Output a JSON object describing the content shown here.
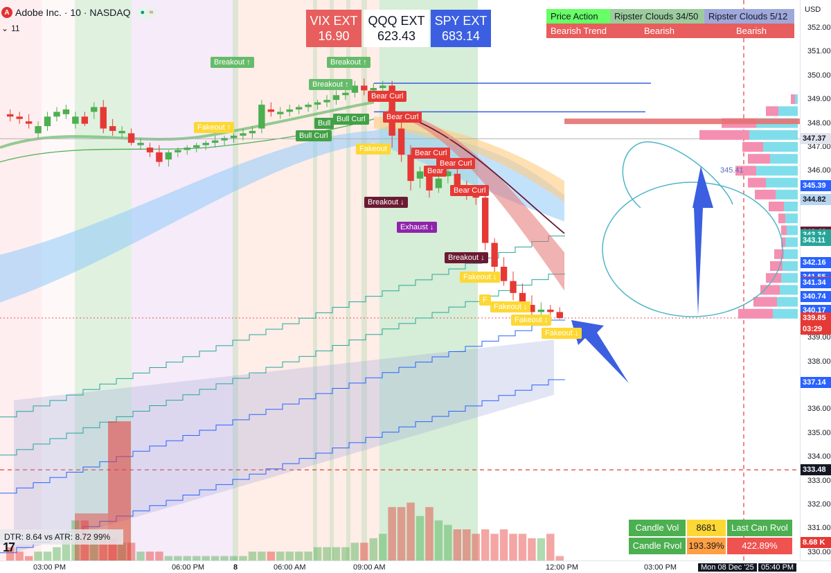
{
  "header": {
    "logo": "A",
    "title": "Adobe Inc. · 10 · NASDAQ",
    "interval_tag": "11",
    "pill_dot": "●",
    "pill_wave": "≈"
  },
  "ext_boxes": [
    {
      "name": "VIX EXT",
      "value": "16.90",
      "bg": "#e85d5d",
      "fg": "#ffffff"
    },
    {
      "name": "QQQ EXT",
      "value": "623.43",
      "bg": "#ffffff",
      "fg": "#131722"
    },
    {
      "name": "SPY EXT",
      "value": "683.14",
      "bg": "#3b5fe0",
      "fg": "#ffffff"
    }
  ],
  "status_table": {
    "headers": [
      "Price Action",
      "Ripster Clouds 34/50",
      "Ripster Clouds 5/12"
    ],
    "values": [
      "Bearish Trend",
      "Bearish",
      "Bearish"
    ]
  },
  "candle_table": {
    "rows": [
      {
        "label": "Candle Vol",
        "value": "8681",
        "extra": "Last Can Rvol"
      },
      {
        "label": "Candle Rvol",
        "value": "193.39%",
        "extra": "422.89%"
      }
    ]
  },
  "dtr_text": "DTR: 8.64 vs ATR: 8.72 99%",
  "tv_logo": "17",
  "axis": {
    "currency": "USD",
    "y_ticks": [
      "352.00",
      "351.00",
      "350.00",
      "349.00",
      "348.00",
      "347.00",
      "346.00",
      "343.00",
      "339.00",
      "338.00",
      "336.00",
      "335.00",
      "334.00",
      "333.00",
      "332.00",
      "331.00",
      "330.00"
    ],
    "x_ticks": [
      "03:00 PM",
      "06:00 PM",
      "8",
      "06:00 AM",
      "09:00 AM",
      "12:00 PM",
      "03:00 PM",
      "Mon 08 Dec '25",
      "05:40 PM"
    ]
  },
  "price_labels": [
    {
      "text": "347.37",
      "bg": "#e0e3eb",
      "fg": "#131722"
    },
    {
      "text": "345.39",
      "bg": "#2962ff",
      "fg": "#ffffff"
    },
    {
      "text": "344.82",
      "bg": "#b8d4f0",
      "fg": "#131722"
    },
    {
      "text": "343.46",
      "bg": "#6a1b33",
      "fg": "#ffffff"
    },
    {
      "text": "343.34",
      "bg": "#26a69a",
      "fg": "#ffffff"
    },
    {
      "text": "343.11",
      "bg": "#26a69a",
      "fg": "#ffffff"
    },
    {
      "text": "342.16",
      "bg": "#2962ff",
      "fg": "#ffffff"
    },
    {
      "text": "341.55",
      "bg": "#2962ff",
      "fg": "#ffffff"
    },
    {
      "text": "341.37",
      "bg": "#e53935",
      "fg": "#ffffff"
    },
    {
      "text": "341.34",
      "bg": "#2962ff",
      "fg": "#ffffff"
    },
    {
      "text": "340.74",
      "bg": "#2962ff",
      "fg": "#ffffff"
    },
    {
      "text": "340.17",
      "bg": "#2962ff",
      "fg": "#ffffff"
    },
    {
      "text": "339.85",
      "bg": "#e53935",
      "fg": "#ffffff"
    },
    {
      "text": "03:29",
      "bg": "#e53935",
      "fg": "#ffffff"
    },
    {
      "text": "337.14",
      "bg": "#2962ff",
      "fg": "#ffffff"
    },
    {
      "text": "333.48",
      "bg": "#131722",
      "fg": "#ffffff"
    },
    {
      "text": "8.68 K",
      "bg": "#e53935",
      "fg": "#ffffff"
    }
  ],
  "poc_label": "345.41",
  "signals": {
    "breakout_up": "Breakout ↑",
    "fakeout_up": "Fakeout ↑",
    "bull_curl": "Bull Curl",
    "bull_short": "Bull",
    "bear_curl": "Bear Curl",
    "bear_short": "Bear",
    "breakout_down": "Breakout ↓",
    "exhaust_down": "Exhaust ↓",
    "fakeout_down": "Fakeout ↓",
    "fakeout_short": "F"
  },
  "colors": {
    "bull": "#4caf50",
    "bear": "#e53935",
    "cloud_blue": "#90caf9",
    "cloud_orange": "#ffcc80",
    "vol_profile_up": "#80deea",
    "vol_profile_down": "#f48fb1",
    "signal_green": "#66bb6a",
    "signal_yellow": "#fdd835",
    "signal_maroon": "#6a1b33",
    "signal_purple": "#8e24aa"
  },
  "chart_data": {
    "type": "candlestick",
    "symbol": "Adobe Inc.",
    "interval": "10",
    "exchange": "NASDAQ",
    "ylim": [
      329.8,
      352.3
    ],
    "last_price": 339.85,
    "dashed_level": 333.48,
    "candles": [
      [
        348.4,
        348.6,
        348.1,
        348.3
      ],
      [
        348.3,
        348.5,
        348.0,
        348.2
      ],
      [
        348.1,
        348.4,
        347.8,
        348.0
      ],
      [
        347.6,
        348.1,
        347.4,
        347.9
      ],
      [
        347.9,
        348.5,
        347.7,
        348.3
      ],
      [
        348.3,
        348.7,
        348.1,
        348.5
      ],
      [
        348.4,
        348.8,
        348.2,
        348.6
      ],
      [
        348.0,
        348.5,
        347.8,
        348.3
      ],
      [
        348.3,
        348.5,
        347.9,
        348.0
      ],
      [
        348.5,
        348.9,
        348.2,
        348.7
      ],
      [
        348.7,
        349.0,
        347.6,
        347.8
      ],
      [
        347.9,
        348.2,
        347.5,
        347.7
      ],
      [
        347.6,
        347.9,
        347.4,
        347.7
      ],
      [
        347.6,
        347.8,
        347.1,
        347.2
      ],
      [
        347.1,
        347.4,
        346.9,
        347.2
      ],
      [
        347.0,
        347.2,
        346.6,
        346.8
      ],
      [
        346.8,
        347.1,
        346.2,
        346.4
      ],
      [
        346.5,
        346.9,
        346.2,
        346.8
      ],
      [
        346.8,
        347.0,
        346.6,
        346.9
      ],
      [
        346.9,
        347.1,
        346.7,
        347.0
      ],
      [
        347.0,
        347.2,
        346.8,
        347.1
      ],
      [
        347.1,
        347.3,
        346.9,
        347.2
      ],
      [
        347.2,
        347.5,
        347.0,
        347.3
      ],
      [
        347.3,
        347.5,
        347.1,
        347.4
      ],
      [
        347.4,
        347.6,
        347.2,
        347.5
      ],
      [
        347.5,
        347.8,
        347.3,
        347.6
      ],
      [
        347.6,
        347.9,
        347.4,
        347.7
      ],
      [
        347.8,
        349.0,
        347.6,
        348.8
      ],
      [
        348.6,
        348.9,
        348.3,
        348.5
      ],
      [
        348.4,
        348.7,
        348.2,
        348.5
      ],
      [
        348.5,
        348.8,
        348.3,
        348.6
      ],
      [
        348.6,
        348.8,
        348.4,
        348.7
      ],
      [
        348.7,
        348.9,
        348.5,
        348.8
      ],
      [
        348.8,
        349.0,
        348.6,
        348.9
      ],
      [
        348.9,
        349.2,
        348.7,
        349.0
      ],
      [
        349.0,
        349.4,
        348.8,
        349.2
      ],
      [
        349.2,
        349.6,
        349.0,
        349.3
      ],
      [
        349.3,
        349.8,
        349.1,
        349.6
      ],
      [
        349.6,
        349.9,
        349.2,
        349.4
      ],
      [
        349.4,
        349.7,
        349.1,
        349.5
      ],
      [
        349.5,
        349.8,
        349.2,
        349.6
      ],
      [
        349.6,
        349.8,
        347.0,
        347.5
      ],
      [
        347.8,
        348.2,
        346.4,
        346.7
      ],
      [
        346.7,
        347.1,
        345.2,
        345.6
      ],
      [
        345.7,
        346.2,
        345.3,
        346.0
      ],
      [
        345.9,
        346.1,
        344.9,
        345.2
      ],
      [
        345.3,
        345.9,
        345.1,
        345.7
      ],
      [
        345.8,
        346.4,
        345.5,
        346.0
      ],
      [
        345.9,
        346.1,
        345.0,
        345.3
      ],
      [
        345.3,
        345.6,
        344.8,
        345.0
      ],
      [
        345.0,
        345.4,
        344.6,
        344.9
      ],
      [
        344.9,
        345.1,
        342.7,
        343.0
      ],
      [
        343.0,
        343.2,
        341.7,
        342.0
      ],
      [
        342.0,
        342.4,
        341.2,
        341.4
      ],
      [
        341.4,
        341.8,
        340.6,
        340.9
      ],
      [
        340.9,
        341.3,
        340.1,
        340.4
      ],
      [
        340.4,
        340.8,
        339.9,
        340.1
      ],
      [
        340.1,
        340.5,
        339.7,
        340.2
      ],
      [
        340.2,
        340.4,
        339.9,
        340.1
      ],
      [
        340.1,
        340.3,
        339.8,
        339.85
      ]
    ],
    "volumes": [
      3,
      2,
      1,
      2,
      2,
      3,
      6,
      9,
      9,
      7,
      6,
      5,
      4,
      4,
      2,
      2,
      2,
      1,
      1,
      1,
      1,
      1,
      1,
      1,
      1,
      1,
      2,
      2,
      2,
      2,
      2,
      2,
      2,
      3,
      3,
      3,
      3,
      4,
      4,
      5,
      6,
      12,
      12,
      13,
      10,
      12,
      9,
      8,
      7,
      7,
      6,
      7,
      6,
      7,
      6,
      6,
      5,
      5,
      6,
      1
    ],
    "volume_profile": [
      {
        "price": 349.0,
        "up": 4,
        "down": 6
      },
      {
        "price": 348.5,
        "up": 28,
        "down": 18
      },
      {
        "price": 348.0,
        "up": 60,
        "down": 50
      },
      {
        "price": 347.5,
        "up": 70,
        "down": 72
      },
      {
        "price": 347.0,
        "up": 50,
        "down": 30
      },
      {
        "price": 346.5,
        "up": 40,
        "down": 32
      },
      {
        "price": 346.0,
        "up": 60,
        "down": 30
      },
      {
        "price": 345.5,
        "up": 46,
        "down": 26
      },
      {
        "price": 345.0,
        "up": 32,
        "down": 30
      },
      {
        "price": 344.5,
        "up": 20,
        "down": 22
      },
      {
        "price": 344.0,
        "up": 18,
        "down": 10
      },
      {
        "price": 343.5,
        "up": 16,
        "down": 8
      },
      {
        "price": 343.0,
        "up": 18,
        "down": 6
      },
      {
        "price": 342.5,
        "up": 20,
        "down": 14
      },
      {
        "price": 342.0,
        "up": 22,
        "down": 18
      },
      {
        "price": 341.5,
        "up": 24,
        "down": 22
      },
      {
        "price": 341.0,
        "up": 26,
        "down": 28
      },
      {
        "price": 340.5,
        "up": 30,
        "down": 34
      },
      {
        "price": 340.0,
        "up": 36,
        "down": 50
      }
    ]
  }
}
